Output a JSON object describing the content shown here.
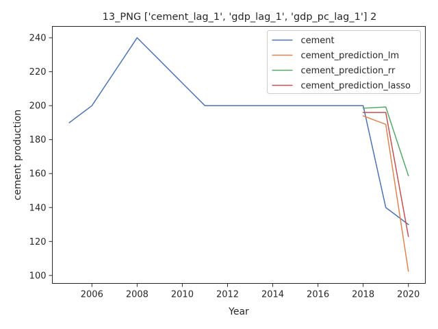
{
  "chart_data": {
    "type": "line",
    "title": "13_PNG ['cement_lag_1', 'gdp_lag_1', 'gdp_pc_lag_1'] 2",
    "xlabel": "Year",
    "ylabel": "cement production",
    "xlim": [
      2004.25,
      2020.75
    ],
    "ylim": [
      95.3,
      246.7
    ],
    "xticks": [
      2006,
      2008,
      2010,
      2012,
      2014,
      2016,
      2018,
      2020
    ],
    "yticks": [
      100,
      120,
      140,
      160,
      180,
      200,
      220,
      240
    ],
    "grid": false,
    "legend_position": "top-right",
    "series": [
      {
        "name": "cement",
        "color": "#4c72b0",
        "x": [
          2005,
          2006,
          2007,
          2008,
          2009,
          2010,
          2011,
          2012,
          2013,
          2014,
          2015,
          2016,
          2017,
          2018,
          2019,
          2020
        ],
        "y": [
          190,
          200,
          220,
          240,
          226.7,
          213.3,
          200,
          200,
          200,
          200,
          200,
          200,
          200,
          200,
          140,
          130
        ]
      },
      {
        "name": "cement_prediction_lm",
        "color": "#dd8452",
        "x": [
          2018,
          2019,
          2020
        ],
        "y": [
          194,
          189,
          102.5
        ]
      },
      {
        "name": "cement_prediction_rr",
        "color": "#55a868",
        "x": [
          2018,
          2019,
          2020
        ],
        "y": [
          198.5,
          199.2,
          158.8
        ]
      },
      {
        "name": "cement_prediction_lasso",
        "color": "#c44e52",
        "x": [
          2018,
          2019,
          2020
        ],
        "y": [
          196,
          196,
          123
        ]
      }
    ]
  }
}
